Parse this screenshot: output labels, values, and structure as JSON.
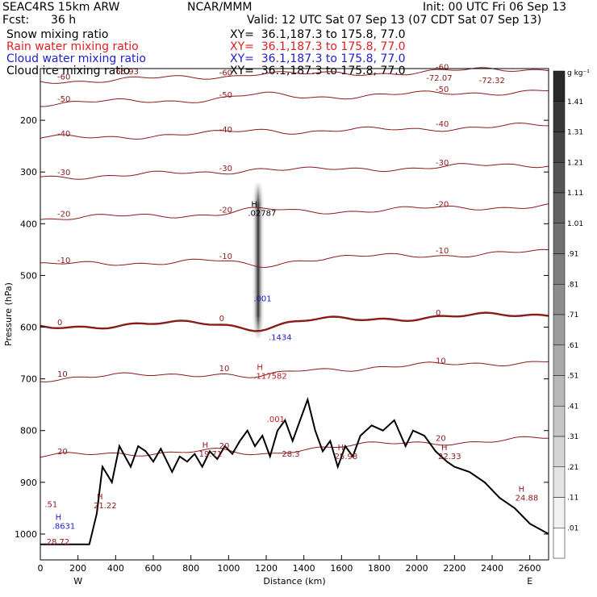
{
  "header": {
    "left1": "SEAC4RS 15km ARW",
    "left2": "Fcst:",
    "fcst": "36 h",
    "center": "NCAR/MMM",
    "init": "Init: 00 UTC Fri 06 Sep 13",
    "valid": "Valid: 12 UTC Sat 07 Sep 13 (07 CDT Sat 07 Sep 13)"
  },
  "fields": [
    {
      "name": "Snow mixing ratio",
      "color": "#000000",
      "xy": "XY=  36.1,187.3 to 175.8, 77.0"
    },
    {
      "name": "Rain water mixing ratio",
      "color": "#e02020",
      "xy": "XY=  36.1,187.3 to 175.8, 77.0"
    },
    {
      "name": "Cloud water mixing ratio",
      "color": "#2020d0",
      "xy": "XY=  36.1,187.3 to 175.8, 77.0"
    },
    {
      "name": "Cloud ice mixing ratio",
      "color": "#000000",
      "xy": "XY=  36.1,187.3 to 175.8, 77.0"
    }
  ],
  "chart_data": {
    "type": "cross-section",
    "xlabel": "Distance (km)",
    "ylabel": "Pressure (hPa)",
    "x_ticks": [
      0,
      200,
      400,
      600,
      800,
      1000,
      1200,
      1400,
      1600,
      1800,
      2000,
      2200,
      2400,
      2600
    ],
    "y_ticks": [
      200,
      300,
      400,
      500,
      600,
      700,
      800,
      900,
      1000
    ],
    "x_range": [
      0,
      2700
    ],
    "y_range": [
      1050,
      100
    ],
    "end_labels": {
      "left": "W",
      "right": "E"
    },
    "colorbar": {
      "unit": "g kg⁻¹",
      "labels": [
        "1.41",
        "1.31",
        "1.21",
        "1.11",
        "1.01",
        ".91",
        ".81",
        ".71",
        ".61",
        ".51",
        ".41",
        ".31",
        ".21",
        ".11",
        ".01"
      ],
      "dark": "#2a2a2a",
      "light": "#ffffff"
    },
    "temperature_contours": [
      {
        "label": "-60",
        "p": 125
      },
      {
        "label": "-50",
        "p": 168
      },
      {
        "label": "-40",
        "p": 235
      },
      {
        "label": "-30",
        "p": 310
      },
      {
        "label": "-20",
        "p": 390
      },
      {
        "label": "-10",
        "p": 480
      },
      {
        "label": "0",
        "p": 600
      },
      {
        "label": "10",
        "p": 700
      },
      {
        "label": "20",
        "p": 850
      }
    ],
    "contour_color": "#8b1a1a",
    "extrema": [
      {
        "label": "H",
        "value": ".02787",
        "x": 1120,
        "p": 385,
        "color": "#000000"
      },
      {
        "label": "",
        "value": ".001",
        "x": 1150,
        "p": 550,
        "color": "#2020d0"
      },
      {
        "label": "",
        "value": ".1434",
        "x": 1230,
        "p": 625,
        "color": "#2020d0"
      },
      {
        "label": "H",
        "value": ".117582",
        "x": 1150,
        "p": 700,
        "color": "#c01818"
      },
      {
        "label": "",
        "value": ".001",
        "x": 1220,
        "p": 783,
        "color": "#c01818"
      },
      {
        "label": "H",
        "value": "19.71",
        "x": 860,
        "p": 850,
        "color": "#8b1a1a"
      },
      {
        "label": "",
        "value": "28.3",
        "x": 1300,
        "p": 850,
        "color": "#8b1a1a"
      },
      {
        "label": "H",
        "value": "25.98",
        "x": 1580,
        "p": 855,
        "color": "#8b1a1a"
      },
      {
        "label": "H",
        "value": "22.33",
        "x": 2130,
        "p": 855,
        "color": "#8b1a1a"
      },
      {
        "label": "H",
        "value": "24.88",
        "x": 2540,
        "p": 935,
        "color": "#8b1a1a"
      },
      {
        "label": "H",
        "value": "21.22",
        "x": 300,
        "p": 950,
        "color": "#8b1a1a"
      },
      {
        "label": "",
        "value": ".51",
        "x": 40,
        "p": 948,
        "color": "#8b1a1a"
      },
      {
        "label": "H",
        "value": ".8631",
        "x": 80,
        "p": 990,
        "color": "#2020d0"
      },
      {
        "label": "",
        "value": "28.72",
        "x": 50,
        "p": 1020,
        "color": "#8b1a1a"
      }
    ],
    "top_labels": [
      "65.93",
      "-72.07",
      "-72.32"
    ]
  }
}
